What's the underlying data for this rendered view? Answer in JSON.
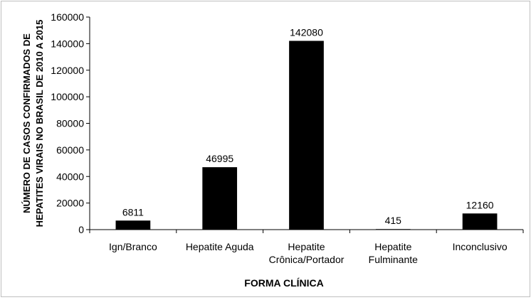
{
  "chart_data": {
    "type": "bar",
    "title": "",
    "xlabel": "FORMA CLÍNICA",
    "ylabel_lines": [
      "NÚMERO DE CASOS CONFIRMADOS DE",
      "HEPATITES VIRAIS NO BRASIL DE 2010 A 2015"
    ],
    "categories": [
      [
        "Ign/Branco"
      ],
      [
        "Hepatite Aguda"
      ],
      [
        "Hepatite",
        "Crônica/Portador"
      ],
      [
        "Hepatite",
        "Fulminante"
      ],
      [
        "Inconclusivo"
      ]
    ],
    "values": [
      6811,
      46995,
      142080,
      415,
      12160
    ],
    "data_labels": [
      "6811",
      "46995",
      "142080",
      "415",
      "12160"
    ],
    "ylim": [
      0,
      160000
    ],
    "yticks": [
      0,
      20000,
      40000,
      60000,
      80000,
      100000,
      120000,
      140000,
      160000
    ],
    "ytick_labels": [
      "0",
      "20000",
      "40000",
      "60000",
      "80000",
      "100000",
      "120000",
      "140000",
      "160000"
    ],
    "grid": false,
    "legend": "none",
    "bar_color": "#000000"
  }
}
